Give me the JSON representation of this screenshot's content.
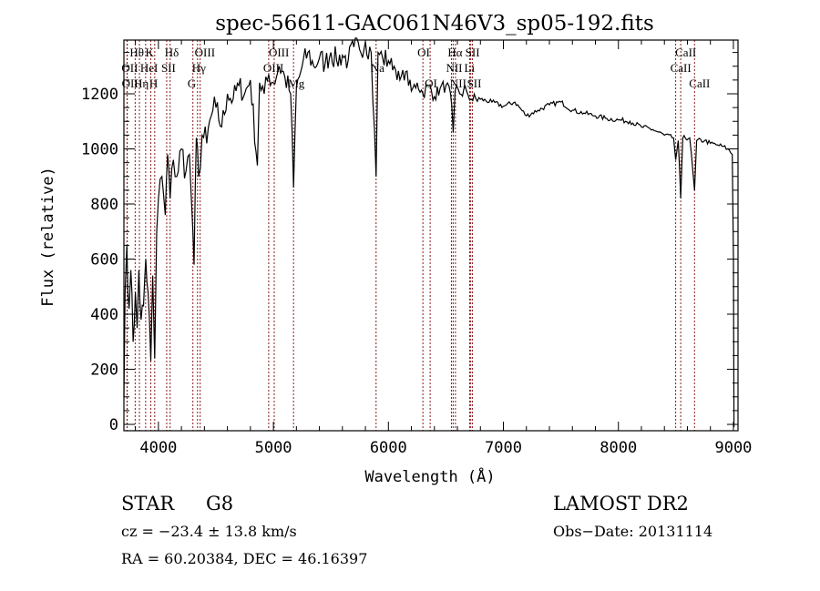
{
  "chart_data": {
    "type": "line",
    "title": "spec-56611-GAC061N46V3_sp05-192.fits",
    "xlabel": "Wavelength (Å)",
    "ylabel": "Flux (relative)",
    "xlim": [
      3700,
      9040
    ],
    "ylim": [
      -23,
      1395
    ],
    "xticks": [
      4000,
      5000,
      6000,
      7000,
      8000,
      9000
    ],
    "yticks": [
      0,
      200,
      400,
      600,
      800,
      1000,
      1200
    ],
    "grid": false,
    "series": [
      {
        "name": "spectrum",
        "points": [
          [
            3700,
            100
          ],
          [
            3710,
            480
          ],
          [
            3725,
            650
          ],
          [
            3745,
            420
          ],
          [
            3760,
            560
          ],
          [
            3780,
            300
          ],
          [
            3800,
            480
          ],
          [
            3815,
            350
          ],
          [
            3830,
            560
          ],
          [
            3850,
            380
          ],
          [
            3870,
            430
          ],
          [
            3890,
            600
          ],
          [
            3910,
            480
          ],
          [
            3934,
            230
          ],
          [
            3950,
            540
          ],
          [
            3968,
            240
          ],
          [
            3985,
            700
          ],
          [
            4000,
            820
          ],
          [
            4030,
            900
          ],
          [
            4060,
            760
          ],
          [
            4080,
            980
          ],
          [
            4102,
            820
          ],
          [
            4130,
            960
          ],
          [
            4160,
            900
          ],
          [
            4200,
            1000
          ],
          [
            4240,
            920
          ],
          [
            4270,
            980
          ],
          [
            4300,
            700
          ],
          [
            4310,
            580
          ],
          [
            4330,
            1040
          ],
          [
            4350,
            900
          ],
          [
            4380,
            1050
          ],
          [
            4420,
            1020
          ],
          [
            4460,
            1120
          ],
          [
            4500,
            1150
          ],
          [
            4550,
            1080
          ],
          [
            4600,
            1200
          ],
          [
            4650,
            1180
          ],
          [
            4700,
            1230
          ],
          [
            4750,
            1200
          ],
          [
            4800,
            1250
          ],
          [
            4861,
            940
          ],
          [
            4880,
            1240
          ],
          [
            4920,
            1200
          ],
          [
            4960,
            1270
          ],
          [
            5000,
            1240
          ],
          [
            5050,
            1300
          ],
          [
            5100,
            1260
          ],
          [
            5150,
            1200
          ],
          [
            5175,
            860
          ],
          [
            5200,
            1220
          ],
          [
            5250,
            1300
          ],
          [
            5300,
            1350
          ],
          [
            5350,
            1300
          ],
          [
            5400,
            1330
          ],
          [
            5450,
            1310
          ],
          [
            5500,
            1350
          ],
          [
            5550,
            1320
          ],
          [
            5600,
            1340
          ],
          [
            5650,
            1320
          ],
          [
            5700,
            1370
          ],
          [
            5750,
            1360
          ],
          [
            5800,
            1390
          ],
          [
            5850,
            1350
          ],
          [
            5893,
            900
          ],
          [
            5910,
            1350
          ],
          [
            5950,
            1330
          ],
          [
            6000,
            1320
          ],
          [
            6050,
            1300
          ],
          [
            6100,
            1250
          ],
          [
            6150,
            1280
          ],
          [
            6200,
            1210
          ],
          [
            6250,
            1240
          ],
          [
            6300,
            1200
          ],
          [
            6350,
            1230
          ],
          [
            6400,
            1190
          ],
          [
            6450,
            1220
          ],
          [
            6500,
            1230
          ],
          [
            6540,
            1200
          ],
          [
            6563,
            1060
          ],
          [
            6580,
            1210
          ],
          [
            6620,
            1200
          ],
          [
            6680,
            1210
          ],
          [
            6720,
            1180
          ],
          [
            6800,
            1180
          ],
          [
            6900,
            1170
          ],
          [
            7000,
            1155
          ],
          [
            7100,
            1170
          ],
          [
            7200,
            1120
          ],
          [
            7300,
            1140
          ],
          [
            7400,
            1160
          ],
          [
            7500,
            1170
          ],
          [
            7600,
            1140
          ],
          [
            7700,
            1130
          ],
          [
            7800,
            1120
          ],
          [
            7900,
            1110
          ],
          [
            8000,
            1105
          ],
          [
            8100,
            1100
          ],
          [
            8200,
            1080
          ],
          [
            8300,
            1070
          ],
          [
            8400,
            1050
          ],
          [
            8480,
            1040
          ],
          [
            8498,
            960
          ],
          [
            8520,
            1030
          ],
          [
            8542,
            820
          ],
          [
            8560,
            1040
          ],
          [
            8620,
            1040
          ],
          [
            8662,
            850
          ],
          [
            8680,
            1030
          ],
          [
            8750,
            1030
          ],
          [
            8800,
            1020
          ],
          [
            8850,
            1015
          ],
          [
            8900,
            1010
          ],
          [
            8950,
            1000
          ],
          [
            8990,
            980
          ],
          [
            9000,
            600
          ],
          [
            9005,
            -10
          ]
        ]
      }
    ],
    "lines": [
      {
        "label": "OII",
        "wavelength": 3727,
        "row": 2
      },
      {
        "label": "OII",
        "wavelength": 3729,
        "row": 3
      },
      {
        "label": "Hθ",
        "wavelength": 3798,
        "row": 1
      },
      {
        "label": "Hη",
        "wavelength": 3835,
        "row": 3
      },
      {
        "label": "HeI",
        "wavelength": 3889,
        "row": 2
      },
      {
        "label": "K",
        "wavelength": 3934,
        "row": 1
      },
      {
        "label": "H",
        "wavelength": 3968,
        "row": 3
      },
      {
        "label": "SII",
        "wavelength": 4072,
        "row": 2
      },
      {
        "label": "Hδ",
        "wavelength": 4102,
        "row": 1
      },
      {
        "label": "G",
        "wavelength": 4300,
        "row": 3
      },
      {
        "label": "Hγ",
        "wavelength": 4340,
        "row": 2
      },
      {
        "label": "OIII",
        "wavelength": 4363,
        "row": 1
      },
      {
        "label": "OIII",
        "wavelength": 4959,
        "row": 2
      },
      {
        "label": "OIII",
        "wavelength": 5007,
        "row": 1
      },
      {
        "label": "Mg",
        "wavelength": 5175,
        "row": 3
      },
      {
        "label": "Na",
        "wavelength": 5893,
        "row": 2
      },
      {
        "label": "OI",
        "wavelength": 6300,
        "row": 1
      },
      {
        "label": "OI",
        "wavelength": 6363,
        "row": 3
      },
      {
        "label": "NII",
        "wavelength": 6548,
        "row": 2
      },
      {
        "label": "Hα",
        "wavelength": 6563,
        "row": 1
      },
      {
        "label": "NII",
        "wavelength": 6583,
        "row": 3
      },
      {
        "label": "Li",
        "wavelength": 6707,
        "row": 2
      },
      {
        "label": "SII",
        "wavelength": 6716,
        "row": 1
      },
      {
        "label": "SII",
        "wavelength": 6731,
        "row": 3
      },
      {
        "label": "CaII",
        "wavelength": 8498,
        "row": 2
      },
      {
        "label": "CaII",
        "wavelength": 8542,
        "row": 1
      },
      {
        "label": "CaII",
        "wavelength": 8662,
        "row": 3
      }
    ]
  },
  "info": {
    "class": "STAR",
    "subclass": "G8",
    "survey": "LAMOST DR2",
    "cz": "cz = −23.4 ± 13.8 km/s",
    "obs_date": "Obs−Date: 20131114",
    "coords": "RA =  60.20384, DEC =  46.16397"
  },
  "colors": {
    "line_marker": "#8b1a1a",
    "spectrum": "#000000"
  }
}
